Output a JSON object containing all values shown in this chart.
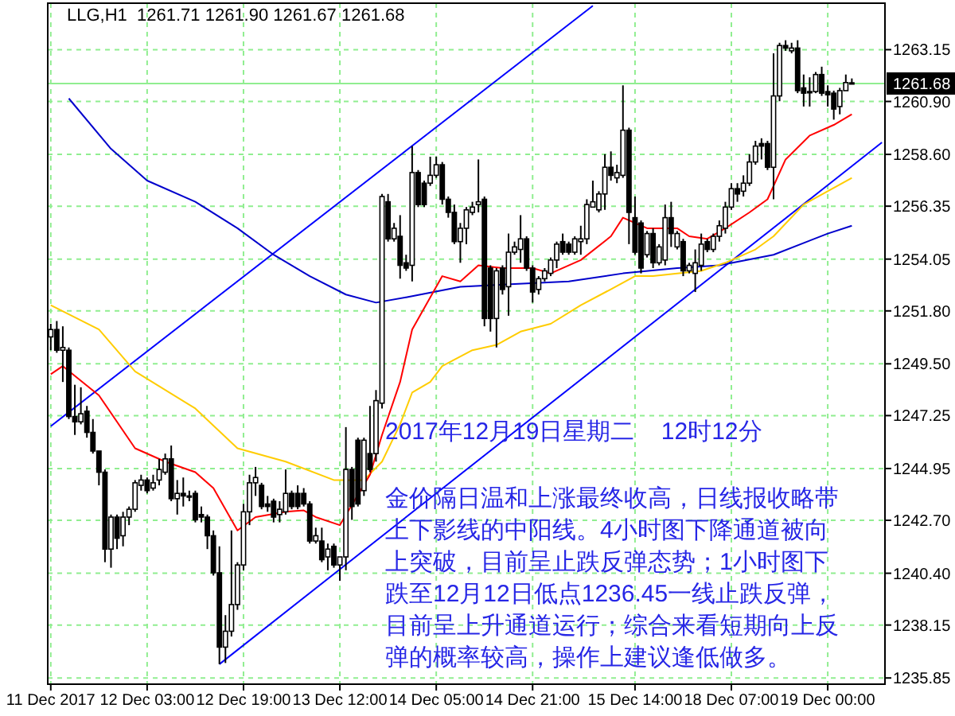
{
  "chart_data": {
    "type": "candlestick",
    "title": "LLG,H1  1261.71 1261.90 1261.67 1261.68",
    "categories": [
      "11 Dec 2017",
      null,
      null,
      null,
      null,
      null,
      null,
      null,
      null,
      null,
      null,
      null,
      null,
      null,
      null,
      null,
      "12 Dec 03:00",
      null,
      null,
      null,
      null,
      null,
      null,
      null,
      null,
      null,
      null,
      null,
      null,
      null,
      null,
      null,
      "12 Dec 19:00",
      null,
      null,
      null,
      null,
      null,
      null,
      null,
      null,
      null,
      null,
      null,
      null,
      null,
      null,
      null,
      "13 Dec 12:00",
      null,
      null,
      null,
      null,
      null,
      null,
      null,
      null,
      null,
      null,
      null,
      null,
      null,
      null,
      null,
      "14 Dec 05:00",
      null,
      null,
      null,
      null,
      null,
      null,
      null,
      null,
      null,
      null,
      null,
      null,
      null,
      null,
      null,
      "14 Dec 21:00",
      null,
      null,
      null,
      null,
      null,
      null,
      null,
      null,
      null,
      null,
      null,
      null,
      null,
      null,
      null,
      null,
      "15 Dec 14:00",
      null,
      null,
      null,
      null,
      null,
      null,
      null,
      null,
      null,
      null,
      null,
      null,
      null,
      null,
      null,
      "18 Dec 07:00",
      null,
      null,
      null,
      null,
      null,
      null,
      null,
      null,
      null,
      null,
      null,
      null,
      null,
      null,
      null,
      "19 Dec 00:00",
      null,
      null,
      null,
      null,
      null,
      null,
      null,
      null,
      null
    ],
    "ohlc": [
      [
        1250.67,
        1251.24,
        1250.09,
        1250.99
      ],
      [
        1250.99,
        1251.36,
        1249.98,
        1250.09
      ],
      [
        1250.09,
        1251.13,
        1248.71,
        1250.21
      ],
      [
        1250.09,
        1250.21,
        1247.1,
        1247.21
      ],
      [
        1247.21,
        1248.59,
        1246.41,
        1246.98
      ],
      [
        1246.98,
        1248.48,
        1246.87,
        1247.33
      ],
      [
        1247.44,
        1247.67,
        1246.29,
        1246.52
      ],
      [
        1246.52,
        1247.1,
        1245.6,
        1245.71
      ],
      [
        1245.71,
        1245.71,
        1244.22,
        1244.79
      ],
      [
        1244.79,
        1244.91,
        1240.88,
        1241.45
      ],
      [
        1241.45,
        1242.95,
        1240.64,
        1242.84
      ],
      [
        1242.84,
        1242.95,
        1241.45,
        1241.92
      ],
      [
        1242.03,
        1243.07,
        1241.57,
        1242.84
      ],
      [
        1242.84,
        1243.3,
        1242.49,
        1243.18
      ],
      [
        1243.18,
        1244.45,
        1243.07,
        1244.33
      ],
      [
        1244.22,
        1244.68,
        1243.99,
        1244.45
      ],
      [
        1244.45,
        1244.56,
        1243.87,
        1243.99
      ],
      [
        1244.1,
        1244.68,
        1243.99,
        1244.33
      ],
      [
        1244.45,
        1245.37,
        1244.22,
        1244.91
      ],
      [
        1244.79,
        1245.6,
        1244.68,
        1245.37
      ],
      [
        1245.37,
        1245.95,
        1243.53,
        1243.64
      ],
      [
        1243.64,
        1244.45,
        1242.95,
        1243.87
      ],
      [
        1243.87,
        1244.56,
        1243.3,
        1243.76
      ],
      [
        1243.76,
        1243.99,
        1243.53,
        1243.76
      ],
      [
        1243.87,
        1243.99,
        1242.61,
        1242.72
      ],
      [
        1242.95,
        1243.3,
        1242.61,
        1242.84
      ],
      [
        1242.84,
        1242.95,
        1241.45,
        1242.03
      ],
      [
        1242.03,
        1242.26,
        1240.3,
        1240.42
      ],
      [
        1240.42,
        1241.57,
        1236.45,
        1237.19
      ],
      [
        1237.19,
        1238.58,
        1236.5,
        1237.88
      ],
      [
        1237.88,
        1242.26,
        1237.65,
        1239.04
      ],
      [
        1239.04,
        1240.88,
        1238.81,
        1240.76
      ],
      [
        1240.76,
        1243.41,
        1240.53,
        1243.07
      ],
      [
        1243.07,
        1244.68,
        1242.49,
        1244.33
      ],
      [
        1244.33,
        1245.02,
        1243.76,
        1244.56
      ],
      [
        1244.22,
        1244.33,
        1243.18,
        1243.3
      ],
      [
        1243.41,
        1243.76,
        1243.07,
        1243.3
      ],
      [
        1243.53,
        1243.64,
        1242.61,
        1242.84
      ],
      [
        1242.95,
        1243.53,
        1242.61,
        1243.18
      ],
      [
        1243.07,
        1244.91,
        1242.95,
        1243.87
      ],
      [
        1243.87,
        1243.99,
        1243.18,
        1243.3
      ],
      [
        1243.87,
        1244.22,
        1243.18,
        1243.3
      ],
      [
        1243.87,
        1244.1,
        1243.3,
        1243.41
      ],
      [
        1243.41,
        1243.53,
        1241.69,
        1241.8
      ],
      [
        1241.8,
        1242.38,
        1241.69,
        1242.03
      ],
      [
        1241.8,
        1242.38,
        1240.88,
        1240.99
      ],
      [
        1241.11,
        1241.69,
        1240.53,
        1241.45
      ],
      [
        1241.57,
        1241.69,
        1240.64,
        1240.76
      ],
      [
        1240.76,
        1241.11,
        1240.07,
        1241.11
      ],
      [
        1241.11,
        1246.75,
        1240.53,
        1244.91
      ],
      [
        1244.91,
        1245.02,
        1242.72,
        1243.3
      ],
      [
        1246.18,
        1246.29,
        1243.3,
        1243.41
      ],
      [
        1243.99,
        1246.29,
        1243.76,
        1246.18
      ],
      [
        1245.6,
        1247.67,
        1244.79,
        1244.91
      ],
      [
        1245.6,
        1248.36,
        1245.25,
        1247.9
      ],
      [
        1247.79,
        1256.88,
        1247.56,
        1256.77
      ],
      [
        1256.54,
        1256.88,
        1254.81,
        1254.93
      ],
      [
        1254.93,
        1255.62,
        1254.81,
        1255.39
      ],
      [
        1255.04,
        1255.96,
        1253.2,
        1253.78
      ],
      [
        1253.89,
        1254.24,
        1253.54,
        1253.66
      ],
      [
        1253.78,
        1258.96,
        1253.08,
        1257.81
      ],
      [
        1257.81,
        1257.92,
        1256.31,
        1256.42
      ],
      [
        1257.35,
        1257.46,
        1256.31,
        1256.42
      ],
      [
        1257.35,
        1258.5,
        1257.23,
        1257.69
      ],
      [
        1257.69,
        1258.5,
        1257.58,
        1258.15
      ],
      [
        1258.15,
        1258.27,
        1256.42,
        1256.65
      ],
      [
        1256.65,
        1256.77,
        1255.85,
        1256.08
      ],
      [
        1256.08,
        1256.42,
        1254.7,
        1254.81
      ],
      [
        1254.81,
        1255.62,
        1253.89,
        1255.39
      ],
      [
        1255.39,
        1256.31,
        1254.7,
        1256.19
      ],
      [
        1256.08,
        1256.54,
        1255.96,
        1256.31
      ],
      [
        1256.42,
        1258.38,
        1256.08,
        1256.54
      ],
      [
        1256.65,
        1256.77,
        1251.13,
        1251.47
      ],
      [
        1253.66,
        1253.78,
        1250.9,
        1251.47
      ],
      [
        1251.47,
        1253.66,
        1250.21,
        1253.54
      ],
      [
        1253.66,
        1253.78,
        1252.51,
        1252.73
      ],
      [
        1252.85,
        1255.16,
        1251.59,
        1254.35
      ],
      [
        1254.35,
        1254.81,
        1254.24,
        1254.58
      ],
      [
        1254.47,
        1255.96,
        1253.89,
        1254.93
      ],
      [
        1254.93,
        1255.04,
        1253.54,
        1253.66
      ],
      [
        1253.66,
        1253.78,
        1252.16,
        1252.62
      ],
      [
        1252.73,
        1253.31,
        1252.51,
        1253.2
      ],
      [
        1253.2,
        1253.66,
        1253.08,
        1253.54
      ],
      [
        1253.43,
        1254.12,
        1253.31,
        1254.01
      ],
      [
        1254.01,
        1254.81,
        1253.66,
        1254.7
      ],
      [
        1254.81,
        1255.16,
        1254.24,
        1254.35
      ],
      [
        1254.7,
        1254.81,
        1254.24,
        1254.35
      ],
      [
        1254.35,
        1255.04,
        1254.24,
        1254.93
      ],
      [
        1254.81,
        1255.5,
        1254.24,
        1254.93
      ],
      [
        1254.93,
        1256.65,
        1254.7,
        1256.42
      ],
      [
        1256.31,
        1257.46,
        1256.31,
        1256.54
      ],
      [
        1256.19,
        1257.0,
        1256.08,
        1256.88
      ],
      [
        1256.88,
        1258.61,
        1256.19,
        1258.04
      ],
      [
        1258.04,
        1258.73,
        1257.46,
        1257.69
      ],
      [
        1257.58,
        1258.15,
        1257.35,
        1257.81
      ],
      [
        1257.69,
        1261.6,
        1257.58,
        1259.65
      ],
      [
        1259.65,
        1259.76,
        1254.7,
        1256.08
      ],
      [
        1255.85,
        1256.77,
        1254.24,
        1254.35
      ],
      [
        1255.62,
        1255.73,
        1253.43,
        1253.66
      ],
      [
        1254.24,
        1255.27,
        1254.12,
        1255.16
      ],
      [
        1255.16,
        1255.39,
        1253.66,
        1253.89
      ],
      [
        1253.89,
        1254.7,
        1253.78,
        1254.58
      ],
      [
        1254.01,
        1256.42,
        1253.78,
        1255.85
      ],
      [
        1255.85,
        1256.54,
        1254.58,
        1255.16
      ],
      [
        1254.58,
        1255.27,
        1254.47,
        1255.16
      ],
      [
        1254.81,
        1254.93,
        1253.31,
        1253.54
      ],
      [
        1253.54,
        1253.89,
        1253.43,
        1253.78
      ],
      [
        1253.43,
        1254.47,
        1252.62,
        1253.89
      ],
      [
        1253.78,
        1255.16,
        1253.54,
        1254.7
      ],
      [
        1254.81,
        1254.93,
        1254.35,
        1254.47
      ],
      [
        1254.47,
        1255.16,
        1254.35,
        1255.04
      ],
      [
        1255.04,
        1255.73,
        1254.81,
        1255.5
      ],
      [
        1255.39,
        1256.54,
        1255.16,
        1256.31
      ],
      [
        1256.31,
        1257.35,
        1256.19,
        1257.11
      ],
      [
        1257.11,
        1257.35,
        1256.54,
        1256.88
      ],
      [
        1257.0,
        1257.69,
        1256.77,
        1257.35
      ],
      [
        1257.35,
        1258.61,
        1257.23,
        1258.27
      ],
      [
        1258.27,
        1259.19,
        1258.15,
        1258.96
      ],
      [
        1259.07,
        1259.3,
        1258.38,
        1258.96
      ],
      [
        1259.07,
        1259.19,
        1257.92,
        1258.04
      ],
      [
        1258.04,
        1262.99,
        1256.65,
        1261.14
      ],
      [
        1261.14,
        1263.45,
        1260.91,
        1263.33
      ],
      [
        1263.33,
        1263.56,
        1263.1,
        1263.22
      ],
      [
        1263.1,
        1263.45,
        1262.99,
        1263.22
      ],
      [
        1263.22,
        1263.56,
        1261.26,
        1261.37
      ],
      [
        1261.49,
        1262.07,
        1260.68,
        1261.26
      ],
      [
        1261.33,
        1261.95,
        1260.68,
        1261.33
      ],
      [
        1261.33,
        1262.18,
        1261.26,
        1262.07
      ],
      [
        1262.07,
        1262.41,
        1261.14,
        1261.26
      ],
      [
        1261.33,
        1261.6,
        1260.68,
        1261.19
      ],
      [
        1261.26,
        1261.37,
        1260.11,
        1260.57
      ],
      [
        1260.68,
        1261.49,
        1260.34,
        1261.37
      ],
      [
        1261.37,
        1262.07,
        1261.37,
        1261.72
      ],
      [
        1261.71,
        1261.9,
        1261.67,
        1261.68
      ],
      null,
      null,
      null,
      null,
      null
    ],
    "series": [
      {
        "type": "line",
        "color": "#0000ff",
        "values": [
          1246.79,
          null,
          null,
          null,
          null,
          null,
          null,
          null,
          null,
          null,
          null,
          null,
          null,
          null,
          null,
          null,
          null,
          null,
          null,
          null,
          null,
          null,
          null,
          null,
          null,
          null,
          null,
          null,
          null,
          null,
          null,
          null,
          null,
          null,
          null,
          null,
          null,
          null,
          null,
          null,
          null,
          null,
          null,
          null,
          null,
          null,
          null,
          null,
          null,
          null,
          null,
          null,
          null,
          null,
          null,
          null,
          null,
          null,
          null,
          null,
          null,
          null,
          null,
          null,
          null,
          null,
          null,
          null,
          null,
          null,
          null,
          null,
          null,
          null,
          null,
          null,
          null,
          null,
          null,
          null,
          null,
          null,
          null,
          null,
          null,
          null,
          null,
          null,
          null,
          null,
          1265.06,
          null,
          null,
          null,
          null,
          null,
          null,
          null,
          null,
          null,
          null,
          null,
          null,
          null,
          null,
          null,
          null,
          null,
          null,
          null,
          null,
          null,
          null,
          null,
          null,
          null,
          null,
          null,
          null,
          null,
          null,
          null,
          null,
          null,
          null,
          null,
          null,
          null,
          null,
          null,
          null,
          null,
          null,
          null,
          null,
          null,
          null,
          null,
          null
        ]
      },
      {
        "type": "line",
        "color": "#0000ff",
        "values": [
          null,
          null,
          null,
          null,
          null,
          null,
          null,
          null,
          null,
          null,
          null,
          null,
          null,
          null,
          null,
          null,
          null,
          null,
          null,
          null,
          null,
          null,
          null,
          null,
          null,
          null,
          null,
          null,
          1236.45,
          null,
          null,
          null,
          null,
          null,
          null,
          null,
          null,
          null,
          null,
          null,
          null,
          null,
          null,
          null,
          null,
          null,
          null,
          null,
          null,
          null,
          null,
          null,
          null,
          null,
          null,
          null,
          null,
          null,
          null,
          null,
          null,
          null,
          null,
          null,
          null,
          null,
          null,
          null,
          null,
          null,
          null,
          null,
          null,
          null,
          null,
          null,
          null,
          null,
          null,
          null,
          null,
          null,
          null,
          null,
          null,
          null,
          null,
          null,
          null,
          null,
          null,
          null,
          null,
          null,
          null,
          null,
          null,
          null,
          null,
          null,
          null,
          null,
          null,
          null,
          null,
          null,
          null,
          null,
          null,
          null,
          null,
          null,
          null,
          null,
          null,
          null,
          null,
          null,
          null,
          null,
          null,
          null,
          null,
          null,
          null,
          null,
          null,
          null,
          null,
          null,
          null,
          null,
          null,
          null,
          null,
          null,
          null,
          null,
          1259.12
        ]
      },
      {
        "type": "line",
        "color": "#0000cc",
        "values": [
          null,
          null,
          null,
          1261.03,
          null,
          null,
          null,
          null,
          null,
          null,
          1258.84,
          null,
          null,
          null,
          null,
          null,
          1257.46,
          null,
          null,
          null,
          null,
          null,
          null,
          null,
          1256.54,
          null,
          null,
          null,
          null,
          null,
          null,
          1255.39,
          null,
          null,
          null,
          null,
          null,
          1254.24,
          null,
          null,
          null,
          null,
          null,
          1253.31,
          null,
          null,
          null,
          null,
          null,
          1252.51,
          null,
          null,
          null,
          null,
          1252.16,
          null,
          null,
          null,
          null,
          1252.39,
          null,
          null,
          null,
          null,
          null,
          null,
          null,
          null,
          1252.85,
          null,
          null,
          null,
          null,
          null,
          null,
          null,
          null,
          1252.97,
          null,
          null,
          null,
          null,
          null,
          null,
          null,
          null,
          1253.08,
          null,
          null,
          null,
          null,
          null,
          null,
          null,
          null,
          1253.43,
          null,
          null,
          null,
          null,
          null,
          null,
          null,
          null,
          1253.66,
          null,
          null,
          null,
          null,
          null,
          null,
          1253.78,
          null,
          null,
          null,
          null,
          null,
          null,
          null,
          null,
          1254.24,
          null,
          null,
          null,
          null,
          null,
          null,
          null,
          null,
          1255.16,
          null,
          null,
          null,
          1255.5,
          null,
          null,
          null,
          null,
          null
        ]
      },
      {
        "type": "line",
        "color": "#ffcc00",
        "values": [
          1252.05,
          null,
          null,
          null,
          null,
          null,
          null,
          null,
          1250.99,
          null,
          null,
          null,
          null,
          null,
          1249.17,
          null,
          null,
          null,
          null,
          null,
          null,
          null,
          null,
          null,
          1247.56,
          null,
          null,
          null,
          null,
          null,
          null,
          1245.83,
          null,
          null,
          null,
          null,
          null,
          null,
          null,
          1245.25,
          null,
          null,
          null,
          null,
          null,
          null,
          null,
          1244.45,
          null,
          null,
          null,
          null,
          1244.45,
          null,
          null,
          1245.25,
          null,
          null,
          1246.87,
          null,
          1248.25,
          null,
          null,
          1248.71,
          null,
          1249.4,
          null,
          null,
          null,
          null,
          1250.09,
          null,
          null,
          null,
          1250.32,
          null,
          null,
          null,
          1250.9,
          null,
          null,
          null,
          null,
          1251.24,
          null,
          null,
          null,
          null,
          1252.05,
          null,
          null,
          null,
          null,
          1252.74,
          null,
          null,
          null,
          1253.31,
          null,
          null,
          1253.31,
          null,
          null,
          null,
          null,
          null,
          null,
          null,
          1253.54,
          null,
          null,
          null,
          1253.89,
          null,
          null,
          null,
          null,
          1254.47,
          null,
          null,
          1255.04,
          null,
          null,
          null,
          null,
          1256.42,
          null,
          null,
          null,
          null,
          null,
          null,
          null,
          1257.58,
          null,
          null,
          null,
          null,
          null
        ]
      },
      {
        "type": "line",
        "color": "#ff0000",
        "values": [
          1249.05,
          null,
          1249.4,
          null,
          null,
          null,
          null,
          null,
          1248.13,
          null,
          null,
          null,
          null,
          null,
          1245.83,
          null,
          null,
          null,
          null,
          1245.25,
          null,
          null,
          null,
          null,
          1244.79,
          null,
          null,
          1244.1,
          null,
          null,
          null,
          1242.26,
          null,
          null,
          1242.84,
          null,
          null,
          null,
          null,
          1243.07,
          null,
          null,
          1243.13,
          null,
          1242.84,
          null,
          null,
          null,
          1242.49,
          null,
          null,
          null,
          null,
          1244.68,
          null,
          1246.41,
          null,
          null,
          1248.71,
          null,
          1250.99,
          null,
          null,
          null,
          null,
          1253.31,
          null,
          null,
          1253.08,
          null,
          null,
          1253.78,
          null,
          null,
          null,
          1253.66,
          null,
          null,
          null,
          null,
          1253.66,
          null,
          null,
          1253.43,
          null,
          null,
          null,
          null,
          1254.01,
          null,
          null,
          null,
          null,
          1255.04,
          null,
          1255.85,
          null,
          null,
          null,
          1255.39,
          null,
          null,
          null,
          null,
          1255.39,
          null,
          1255.04,
          null,
          null,
          1254.93,
          null,
          null,
          1255.39,
          null,
          null,
          null,
          1256.08,
          null,
          null,
          1256.65,
          null,
          null,
          1258.38,
          null,
          null,
          null,
          1259.42,
          null,
          null,
          null,
          1259.88,
          null,
          null,
          1260.34,
          null,
          null,
          null,
          null,
          null
        ]
      }
    ],
    "ylim": [
      1235.58,
      1265.17
    ],
    "yticks": [
      1263.15,
      {
        "value": 1260.9,
        "label": "1260.90"
      },
      {
        "value": 1258.6,
        "label": "1258.60"
      },
      1256.35,
      1254.05,
      {
        "value": 1251.8,
        "label": "1251.80"
      },
      {
        "value": 1249.5,
        "label": "1249.50"
      },
      1247.25,
      1244.95,
      {
        "value": 1242.7,
        "label": "1242.70"
      },
      {
        "value": 1240.4,
        "label": "1240.40"
      },
      1238.15,
      1235.85
    ],
    "ref_lines": [
      {
        "axis": "y",
        "value": 1261.68,
        "label": "1261.68",
        "color": "#90ee90"
      }
    ],
    "grid": true,
    "annotations": [
      "2017年12月19日星期二    12时12分",
      "金价隔日温和上涨最终收高，日线报收略带上下影线的中阳线。4小时图下降通道被向上突破，目前呈止跌反弹态势；1小时图下跌至12月12日低点1236.45一线止跌反弹，目前呈上升通道运行；综合来看短期向上反弹的概率较高，操作上建议逢低做多。"
    ]
  }
}
